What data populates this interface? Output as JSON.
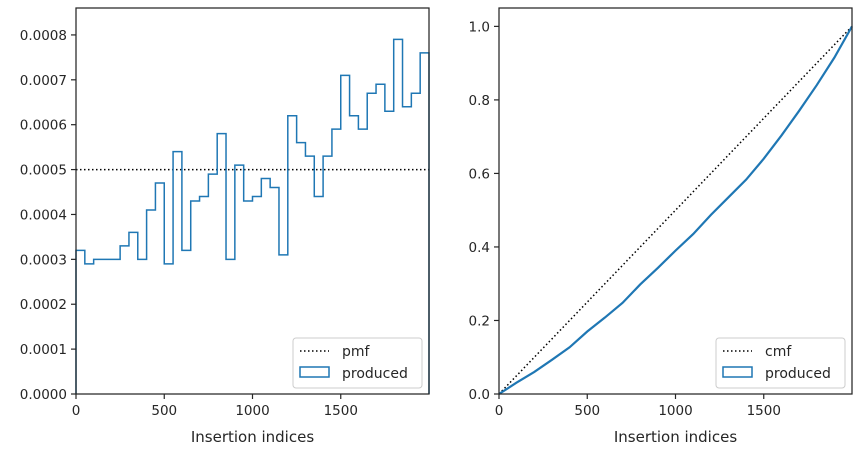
{
  "chart_data": [
    {
      "type": "histogram",
      "panel": "left",
      "xlabel": "Insertion indices",
      "ylabel": "",
      "xlim": [
        0,
        2000
      ],
      "ylim": [
        0,
        0.00086
      ],
      "xticks": [
        0,
        500,
        1000,
        1500
      ],
      "xtick_labels": [
        "0",
        "500",
        "1000",
        "1500"
      ],
      "yticks": [
        0,
        0.0001,
        0.0002,
        0.0003,
        0.0004,
        0.0005,
        0.0006,
        0.0007,
        0.0008
      ],
      "ytick_labels": [
        "0.0000",
        "0.0001",
        "0.0002",
        "0.0003",
        "0.0004",
        "0.0005",
        "0.0006",
        "0.0007",
        "0.0008"
      ],
      "bin_width": 50,
      "series": [
        {
          "name": "produced",
          "style": "step",
          "color": "#1f77b4",
          "values": [
            0.00032,
            0.00029,
            0.0003,
            0.0003,
            0.0003,
            0.00033,
            0.00036,
            0.0003,
            0.00041,
            0.00047,
            0.00029,
            0.00054,
            0.00032,
            0.00043,
            0.00044,
            0.00049,
            0.00058,
            0.0003,
            0.00051,
            0.00043,
            0.00044,
            0.00048,
            0.00046,
            0.00031,
            0.00062,
            0.00056,
            0.00053,
            0.00044,
            0.00053,
            0.00059,
            0.00071,
            0.00062,
            0.00059,
            0.00067,
            0.00069,
            0.00063,
            0.00079,
            0.00064,
            0.00067,
            0.00076
          ]
        },
        {
          "name": "pmf",
          "style": "dotted",
          "color": "#000000",
          "value": 0.0005
        }
      ],
      "legend": {
        "placement": "lower-right",
        "entries": [
          "pmf",
          "produced"
        ]
      }
    },
    {
      "type": "line",
      "panel": "right",
      "xlabel": "Insertion indices",
      "ylabel": "",
      "xlim": [
        0,
        2000
      ],
      "ylim": [
        0,
        1.05
      ],
      "xticks": [
        0,
        500,
        1000,
        1500
      ],
      "xtick_labels": [
        "0",
        "500",
        "1000",
        "1500"
      ],
      "yticks": [
        0,
        0.2,
        0.4,
        0.6,
        0.8,
        1.0
      ],
      "ytick_labels": [
        "0.0",
        "0.2",
        "0.4",
        "0.6",
        "0.8",
        "1.0"
      ],
      "series": [
        {
          "name": "cmf",
          "style": "dotted",
          "color": "#000000",
          "x": [
            0,
            2000
          ],
          "y": [
            0,
            1.0
          ]
        },
        {
          "name": "produced",
          "style": "solid",
          "color": "#1f77b4",
          "x": [
            0,
            100,
            200,
            300,
            400,
            500,
            600,
            700,
            800,
            900,
            1000,
            1100,
            1200,
            1300,
            1400,
            1500,
            1600,
            1700,
            1800,
            1900,
            2000
          ],
          "y": [
            0,
            0.031,
            0.06,
            0.093,
            0.127,
            0.17,
            0.208,
            0.248,
            0.298,
            0.343,
            0.39,
            0.435,
            0.487,
            0.535,
            0.583,
            0.64,
            0.703,
            0.77,
            0.84,
            0.915,
            1.0
          ]
        }
      ],
      "legend": {
        "placement": "lower-right",
        "entries": [
          "cmf",
          "produced"
        ]
      }
    }
  ]
}
